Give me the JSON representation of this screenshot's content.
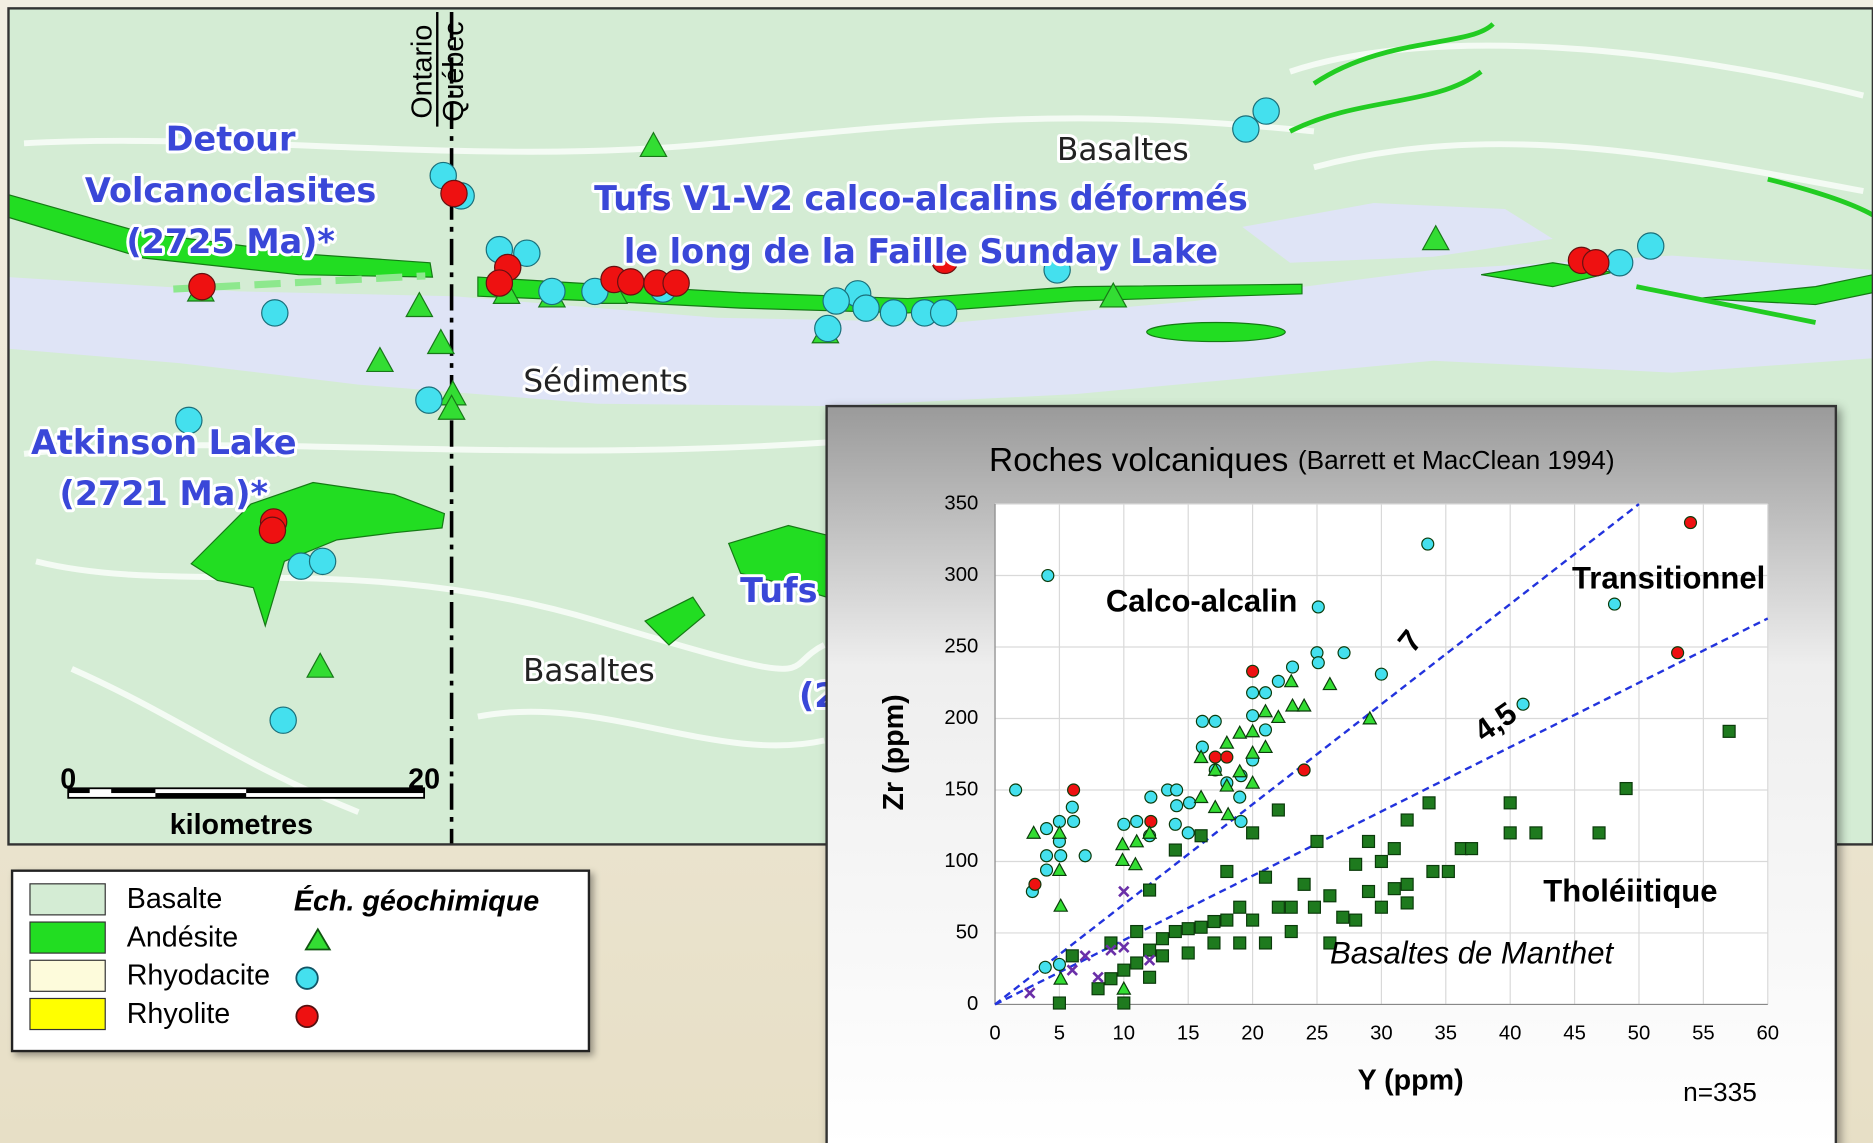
{
  "map": {
    "labels": {
      "detour": [
        "Detour",
        "Volcanoclasites",
        "(2725 Ma)*"
      ],
      "atkinson": [
        "Atkinson Lake",
        "(2721 Ma)*"
      ],
      "tufs_sunday": [
        "Tufs V1-V2 calco-alcalins déformés",
        "le long de la Faille Sunday Lake"
      ],
      "basaltes_north": "Basaltes",
      "sediments": "Sédiments",
      "basaltes_south": "Basaltes",
      "tufs_partial": "Tufs",
      "age_partial": "(2"
    },
    "border": {
      "west": "Ontario",
      "east": "Québec"
    },
    "scale_bar": {
      "ticks": [
        0,
        20
      ],
      "unit": "kilometres"
    }
  },
  "legend": {
    "units": [
      {
        "label": "Basalte",
        "color": "#d4ecd4"
      },
      {
        "label": "Andésite",
        "color": "#22dd22"
      },
      {
        "label": "Rhyodacite",
        "color": "#fdfbdb"
      },
      {
        "label": "Rhyolite",
        "color": "#ffff00"
      }
    ],
    "samples_title": "Éch. géochimique"
  },
  "chart_data": {
    "type": "scatter",
    "title": "Roches volcaniques",
    "subtitle": "(Barrett et MacClean 1994)",
    "x_label": "Y (ppm)",
    "y_label": "Zr (ppm)",
    "xlim": [
      0,
      60
    ],
    "ylim": [
      0,
      350
    ],
    "xticks": [
      0,
      5,
      10,
      15,
      20,
      25,
      30,
      35,
      40,
      45,
      50,
      55,
      60
    ],
    "yticks": [
      0,
      50,
      100,
      150,
      200,
      250,
      300,
      350
    ],
    "grid": true,
    "ratio_lines": [
      7,
      {
        "value": 4.5,
        "label": "4,5"
      }
    ],
    "ratio_line_color": "#2233dd",
    "annotations": [
      "Calco-alcalin",
      "Transitionnel",
      "Tholéiitique",
      "Basaltes de Manthet",
      "n=335"
    ],
    "series": [
      {
        "marker": "circle",
        "color": "#44e0ee",
        "x": [
          1.6,
          4.1,
          2.9,
          4,
          5,
          6,
          6.1,
          4,
          5.1,
          4,
          5,
          7,
          10,
          11,
          12.1,
          13.4,
          14.1,
          15.1,
          16.1,
          17.1,
          16.1,
          17.1,
          18,
          19.1,
          20,
          20,
          21,
          22,
          23.1,
          25,
          25.1,
          25.1,
          27.1,
          30,
          33.6,
          41,
          48.1,
          14,
          15,
          12,
          19.1,
          20,
          21,
          19,
          14.1,
          3.9,
          5
        ],
        "values": [
          150,
          300,
          79,
          123,
          128,
          138,
          128,
          104,
          104,
          94,
          114,
          104,
          126,
          128,
          145,
          150,
          150,
          141,
          198,
          198,
          180,
          164,
          155,
          160,
          171,
          218,
          218,
          226,
          236,
          246,
          239,
          278,
          246,
          231,
          322,
          210,
          280,
          126,
          120,
          118,
          128,
          202,
          192,
          145,
          139,
          26,
          28
        ]
      },
      {
        "marker": "circle",
        "color": "#ee1111",
        "x": [
          3.1,
          6.1,
          12.1,
          17.1,
          20,
          24,
          54,
          53,
          18
        ],
        "values": [
          84,
          150,
          128,
          173,
          233,
          164,
          337,
          246,
          173
        ]
      },
      {
        "marker": "triangle",
        "color": "#33dd33",
        "x": [
          3,
          5,
          5,
          5.1,
          9.9,
          9.9,
          10.9,
          11,
          12,
          16,
          17.1,
          18,
          19,
          20,
          20,
          21,
          22,
          23.1,
          24,
          23,
          26,
          29.1,
          18.1,
          16,
          17.1,
          20,
          5.1,
          10,
          19,
          21,
          18
        ],
        "values": [
          120,
          120,
          94,
          69,
          112,
          101,
          98,
          114,
          120,
          173,
          164,
          183,
          190,
          176,
          191,
          180,
          201,
          209,
          209,
          226,
          224,
          200,
          133,
          145,
          138,
          155,
          18,
          11,
          163,
          205,
          153
        ]
      },
      {
        "marker": "square",
        "color": "#1e7a1e",
        "x": [
          57,
          49,
          46.9,
          40,
          40,
          42,
          36.2,
          37,
          33.7,
          32,
          35.2,
          32,
          31,
          30,
          29,
          28,
          27,
          26,
          25,
          24,
          23,
          22,
          22,
          21,
          20,
          19,
          18,
          17,
          16,
          15,
          14,
          13,
          12,
          11,
          10,
          9,
          8,
          5,
          10,
          20,
          18,
          16,
          14,
          12,
          12,
          13,
          26,
          28,
          30,
          32,
          34,
          29,
          31,
          19,
          21,
          23,
          24.8,
          15,
          17,
          11,
          9,
          6
        ],
        "values": [
          191,
          151,
          120,
          141,
          120,
          120,
          109,
          109,
          141,
          129,
          93,
          71,
          81,
          100,
          79,
          98,
          61,
          76,
          114,
          84,
          68,
          136,
          68,
          89,
          59,
          68,
          59,
          58,
          54,
          53,
          51,
          46,
          38,
          29,
          24,
          18,
          11,
          1,
          1,
          120,
          93,
          118,
          108,
          80,
          19,
          34,
          43,
          59,
          68,
          84,
          93,
          114,
          109,
          43,
          43,
          51,
          68,
          36,
          43,
          51,
          43,
          34
        ]
      },
      {
        "marker": "x",
        "color": "#6a2fa8",
        "x": [
          2.7,
          6,
          8,
          7,
          10,
          10,
          12,
          9
        ],
        "values": [
          8,
          24,
          19,
          34,
          40,
          79,
          31,
          38
        ]
      }
    ]
  }
}
